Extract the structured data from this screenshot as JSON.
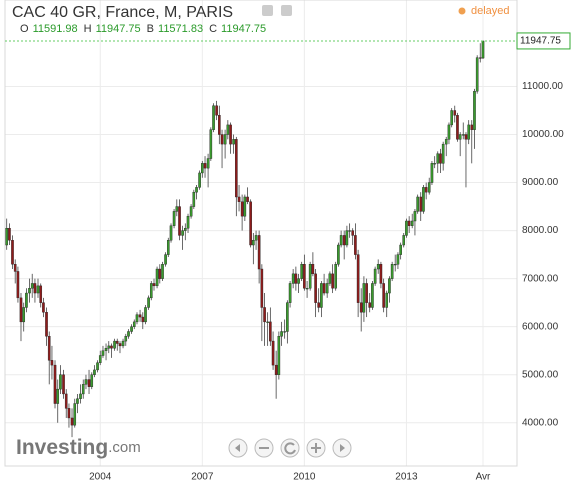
{
  "chart_data": {
    "type": "candlestick",
    "title": "CAC 40 GR, France, M, PARIS",
    "status": "delayed",
    "ohlc_letters": [
      "O",
      "H",
      "B",
      "C"
    ],
    "watermark": "Investing",
    "watermark_suffix": ".com",
    "up_color": "#3a9a2e",
    "down_color": "#8e1c1c",
    "grid": true,
    "xlim": [
      2001.2,
      2016.25
    ],
    "xticks": [
      2004,
      2007,
      2010,
      2013,
      {
        "value": 2015.25,
        "label": "Avr"
      }
    ],
    "ylim": [
      3100,
      12800
    ],
    "yticks": [
      {
        "value": 4000,
        "label": "4000.00"
      },
      {
        "value": 5000,
        "label": "5000.00"
      },
      {
        "value": 6000,
        "label": "6000.00"
      },
      {
        "value": 7000,
        "label": "7000.00"
      },
      {
        "value": 8000,
        "label": "8000.00"
      },
      {
        "value": 9000,
        "label": "9000.00"
      },
      {
        "value": 10000,
        "label": "10000.00"
      },
      {
        "value": 11000,
        "label": "11000.00"
      }
    ],
    "candles": [
      [
        2001.25,
        7700,
        8250,
        7600,
        8050
      ],
      [
        2001.33,
        8050,
        8150,
        7700,
        7800
      ],
      [
        2001.42,
        7800,
        7900,
        7200,
        7300
      ],
      [
        2001.5,
        7300,
        7400,
        6900,
        7150
      ],
      [
        2001.58,
        7150,
        7250,
        6500,
        6600
      ],
      [
        2001.67,
        6600,
        6700,
        5700,
        6100
      ],
      [
        2001.75,
        6100,
        6500,
        5900,
        6400
      ],
      [
        2001.83,
        6400,
        6800,
        6300,
        6700
      ],
      [
        2001.92,
        6700,
        7000,
        6500,
        6800
      ],
      [
        2002.0,
        6800,
        7100,
        6600,
        6900
      ],
      [
        2002.08,
        6900,
        7000,
        6500,
        6700
      ],
      [
        2002.17,
        6700,
        7000,
        6600,
        6850
      ],
      [
        2002.25,
        6850,
        6900,
        6400,
        6500
      ],
      [
        2002.33,
        6500,
        6600,
        6200,
        6300
      ],
      [
        2002.42,
        6300,
        6400,
        5600,
        5800
      ],
      [
        2002.5,
        5800,
        5900,
        4800,
        5300
      ],
      [
        2002.58,
        5300,
        5600,
        4900,
        5200
      ],
      [
        2002.67,
        5200,
        5300,
        4300,
        4400
      ],
      [
        2002.75,
        4400,
        4900,
        4000,
        4700
      ],
      [
        2002.83,
        4700,
        5200,
        4600,
        5000
      ],
      [
        2002.92,
        5000,
        5100,
        4500,
        4600
      ],
      [
        2003.0,
        4600,
        4700,
        4100,
        4300
      ],
      [
        2003.08,
        4300,
        4400,
        3900,
        4100
      ],
      [
        2003.17,
        4100,
        4300,
        3700,
        3950
      ],
      [
        2003.25,
        3950,
        4500,
        3900,
        4400
      ],
      [
        2003.33,
        4400,
        4600,
        4200,
        4500
      ],
      [
        2003.42,
        4500,
        4800,
        4400,
        4600
      ],
      [
        2003.5,
        4600,
        4900,
        4500,
        4800
      ],
      [
        2003.58,
        4800,
        5000,
        4700,
        4900
      ],
      [
        2003.67,
        4900,
        5100,
        4600,
        4750
      ],
      [
        2003.75,
        4750,
        5050,
        4700,
        5000
      ],
      [
        2003.83,
        5000,
        5200,
        4950,
        5100
      ],
      [
        2003.92,
        5100,
        5300,
        5050,
        5250
      ],
      [
        2004.0,
        5250,
        5500,
        5200,
        5400
      ],
      [
        2004.08,
        5400,
        5600,
        5350,
        5500
      ],
      [
        2004.17,
        5500,
        5650,
        5300,
        5550
      ],
      [
        2004.25,
        5550,
        5700,
        5450,
        5600
      ],
      [
        2004.33,
        5600,
        5650,
        5350,
        5550
      ],
      [
        2004.42,
        5550,
        5750,
        5500,
        5700
      ],
      [
        2004.5,
        5700,
        5750,
        5500,
        5650
      ],
      [
        2004.58,
        5650,
        5700,
        5450,
        5600
      ],
      [
        2004.67,
        5600,
        5750,
        5550,
        5700
      ],
      [
        2004.75,
        5700,
        5850,
        5600,
        5800
      ],
      [
        2004.83,
        5800,
        5950,
        5750,
        5900
      ],
      [
        2004.92,
        5900,
        6050,
        5850,
        6000
      ],
      [
        2005.0,
        6000,
        6150,
        5950,
        6100
      ],
      [
        2005.08,
        6100,
        6300,
        6050,
        6250
      ],
      [
        2005.17,
        6250,
        6350,
        6100,
        6200
      ],
      [
        2005.25,
        6200,
        6300,
        5950,
        6100
      ],
      [
        2005.33,
        6100,
        6450,
        6050,
        6400
      ],
      [
        2005.42,
        6400,
        6650,
        6350,
        6600
      ],
      [
        2005.5,
        6600,
        6950,
        6550,
        6900
      ],
      [
        2005.58,
        6900,
        7000,
        6750,
        6850
      ],
      [
        2005.67,
        6850,
        7250,
        6800,
        7200
      ],
      [
        2005.75,
        7200,
        7300,
        6900,
        7000
      ],
      [
        2005.83,
        7000,
        7350,
        6950,
        7300
      ],
      [
        2005.92,
        7300,
        7550,
        7250,
        7500
      ],
      [
        2006.0,
        7500,
        7850,
        7450,
        7800
      ],
      [
        2006.08,
        7800,
        8150,
        7750,
        8100
      ],
      [
        2006.17,
        8100,
        8450,
        8050,
        8400
      ],
      [
        2006.25,
        8400,
        8650,
        8300,
        8500
      ],
      [
        2006.33,
        8500,
        8650,
        7800,
        7900
      ],
      [
        2006.42,
        7900,
        8100,
        7600,
        8000
      ],
      [
        2006.5,
        8000,
        8150,
        7800,
        8050
      ],
      [
        2006.58,
        8050,
        8350,
        7950,
        8300
      ],
      [
        2006.67,
        8300,
        8550,
        8250,
        8500
      ],
      [
        2006.75,
        8500,
        8850,
        8450,
        8800
      ],
      [
        2006.83,
        8800,
        8950,
        8650,
        8900
      ],
      [
        2006.92,
        8900,
        9250,
        8850,
        9200
      ],
      [
        2007.0,
        9200,
        9450,
        9100,
        9400
      ],
      [
        2007.08,
        9400,
        9550,
        9100,
        9300
      ],
      [
        2007.17,
        9300,
        9600,
        8900,
        9500
      ],
      [
        2007.25,
        9500,
        10150,
        9450,
        10100
      ],
      [
        2007.33,
        10100,
        10650,
        10050,
        10600
      ],
      [
        2007.42,
        10600,
        10700,
        10300,
        10400
      ],
      [
        2007.5,
        10400,
        10600,
        9800,
        10000
      ],
      [
        2007.58,
        10000,
        10100,
        9300,
        9800
      ],
      [
        2007.67,
        9800,
        10100,
        9500,
        10000
      ],
      [
        2007.75,
        10000,
        10300,
        9900,
        10200
      ],
      [
        2007.83,
        10200,
        10250,
        9600,
        9800
      ],
      [
        2007.92,
        9800,
        10000,
        9600,
        9900
      ],
      [
        2008.0,
        9900,
        9950,
        8300,
        8700
      ],
      [
        2008.08,
        8700,
        8950,
        8400,
        8600
      ],
      [
        2008.17,
        8600,
        8750,
        8000,
        8300
      ],
      [
        2008.25,
        8300,
        8750,
        8200,
        8700
      ],
      [
        2008.33,
        8700,
        8900,
        8550,
        8600
      ],
      [
        2008.42,
        8600,
        8650,
        7650,
        7700
      ],
      [
        2008.5,
        7700,
        7950,
        7300,
        7800
      ],
      [
        2008.58,
        7800,
        8000,
        7600,
        7900
      ],
      [
        2008.67,
        7900,
        8000,
        6900,
        7200
      ],
      [
        2008.75,
        7200,
        7300,
        5700,
        6400
      ],
      [
        2008.83,
        6400,
        6700,
        5600,
        6100
      ],
      [
        2008.92,
        6100,
        6300,
        5600,
        6100
      ],
      [
        2009.0,
        6100,
        6400,
        5600,
        5700
      ],
      [
        2009.08,
        5700,
        5900,
        5100,
        5200
      ],
      [
        2009.17,
        5200,
        5500,
        4500,
        5000
      ],
      [
        2009.25,
        5000,
        5900,
        4900,
        5800
      ],
      [
        2009.33,
        5800,
        6100,
        5600,
        5900
      ],
      [
        2009.42,
        5900,
        6150,
        5750,
        5900
      ],
      [
        2009.5,
        5900,
        6550,
        5650,
        6500
      ],
      [
        2009.58,
        6500,
        6950,
        6400,
        6900
      ],
      [
        2009.67,
        6900,
        7200,
        6800,
        7100
      ],
      [
        2009.75,
        7100,
        7250,
        6750,
        6900
      ],
      [
        2009.83,
        6900,
        7100,
        6700,
        7000
      ],
      [
        2009.92,
        7000,
        7350,
        6950,
        7300
      ],
      [
        2010.0,
        7300,
        7500,
        6750,
        6800
      ],
      [
        2010.08,
        6800,
        6950,
        6600,
        6800
      ],
      [
        2010.17,
        6800,
        7350,
        6750,
        7300
      ],
      [
        2010.25,
        7300,
        7550,
        7050,
        7100
      ],
      [
        2010.33,
        7100,
        7200,
        6200,
        6500
      ],
      [
        2010.42,
        6500,
        6800,
        6300,
        6400
      ],
      [
        2010.5,
        6400,
        6950,
        6200,
        6900
      ],
      [
        2010.58,
        6900,
        7100,
        6650,
        6700
      ],
      [
        2010.67,
        6700,
        7000,
        6600,
        6900
      ],
      [
        2010.75,
        6900,
        7150,
        6850,
        7100
      ],
      [
        2010.83,
        7100,
        7300,
        6700,
        6800
      ],
      [
        2010.92,
        6800,
        7350,
        6750,
        7300
      ],
      [
        2011.0,
        7300,
        7750,
        7250,
        7700
      ],
      [
        2011.08,
        7700,
        8000,
        7650,
        7900
      ],
      [
        2011.17,
        7900,
        8000,
        7400,
        7700
      ],
      [
        2011.25,
        7700,
        8100,
        7650,
        8000
      ],
      [
        2011.33,
        8000,
        8150,
        7850,
        8000
      ],
      [
        2011.42,
        8000,
        8050,
        7700,
        7900
      ],
      [
        2011.5,
        7900,
        8150,
        7400,
        7500
      ],
      [
        2011.58,
        7500,
        7600,
        6200,
        6500
      ],
      [
        2011.67,
        6500,
        6800,
        5900,
        6300
      ],
      [
        2011.75,
        6300,
        7050,
        6100,
        6900
      ],
      [
        2011.83,
        6900,
        7000,
        6200,
        6500
      ],
      [
        2011.92,
        6500,
        6700,
        6300,
        6400
      ],
      [
        2012.0,
        6400,
        6950,
        6350,
        6900
      ],
      [
        2012.08,
        6900,
        7250,
        6850,
        7200
      ],
      [
        2012.17,
        7200,
        7400,
        7100,
        7300
      ],
      [
        2012.25,
        7300,
        7350,
        6800,
        6900
      ],
      [
        2012.33,
        6900,
        7000,
        6300,
        6400
      ],
      [
        2012.42,
        6400,
        6750,
        6200,
        6700
      ],
      [
        2012.5,
        6700,
        7050,
        6500,
        7000
      ],
      [
        2012.58,
        7000,
        7350,
        6950,
        7300
      ],
      [
        2012.67,
        7300,
        7500,
        7150,
        7300
      ],
      [
        2012.75,
        7300,
        7550,
        7200,
        7500
      ],
      [
        2012.83,
        7500,
        7750,
        7400,
        7700
      ],
      [
        2012.92,
        7700,
        7950,
        7650,
        7900
      ],
      [
        2013.0,
        7900,
        8250,
        7850,
        8200
      ],
      [
        2013.08,
        8200,
        8300,
        7950,
        8100
      ],
      [
        2013.17,
        8100,
        8350,
        8050,
        8200
      ],
      [
        2013.25,
        8200,
        8450,
        7900,
        8400
      ],
      [
        2013.33,
        8400,
        8750,
        8350,
        8700
      ],
      [
        2013.42,
        8700,
        8800,
        8200,
        8400
      ],
      [
        2013.5,
        8400,
        8950,
        8350,
        8900
      ],
      [
        2013.58,
        8900,
        9000,
        8650,
        8800
      ],
      [
        2013.67,
        8800,
        9100,
        8750,
        9000
      ],
      [
        2013.75,
        9000,
        9450,
        8950,
        9400
      ],
      [
        2013.83,
        9400,
        9550,
        9300,
        9400
      ],
      [
        2013.92,
        9400,
        9650,
        9200,
        9600
      ],
      [
        2014.0,
        9600,
        9700,
        9200,
        9400
      ],
      [
        2014.08,
        9400,
        9850,
        9250,
        9800
      ],
      [
        2014.17,
        9800,
        9950,
        9550,
        9900
      ],
      [
        2014.25,
        9900,
        10250,
        9800,
        10200
      ],
      [
        2014.33,
        10200,
        10550,
        10150,
        10500
      ],
      [
        2014.42,
        10500,
        10600,
        10250,
        10400
      ],
      [
        2014.5,
        10400,
        10450,
        9850,
        9900
      ],
      [
        2014.58,
        9900,
        10050,
        9550,
        10000
      ],
      [
        2014.67,
        10000,
        10250,
        9900,
        10000
      ],
      [
        2014.75,
        10000,
        10050,
        8900,
        9900
      ],
      [
        2014.83,
        9900,
        10300,
        9800,
        10200
      ],
      [
        2014.92,
        10200,
        10300,
        9400,
        10100
      ],
      [
        2015.0,
        10100,
        10950,
        9700,
        10900
      ],
      [
        2015.08,
        10900,
        11650,
        10850,
        11600
      ],
      [
        2015.17,
        11600,
        11900,
        11500,
        11591.98
      ],
      [
        2015.25,
        11591.98,
        11947.75,
        11571.83,
        11947.75
      ]
    ]
  }
}
